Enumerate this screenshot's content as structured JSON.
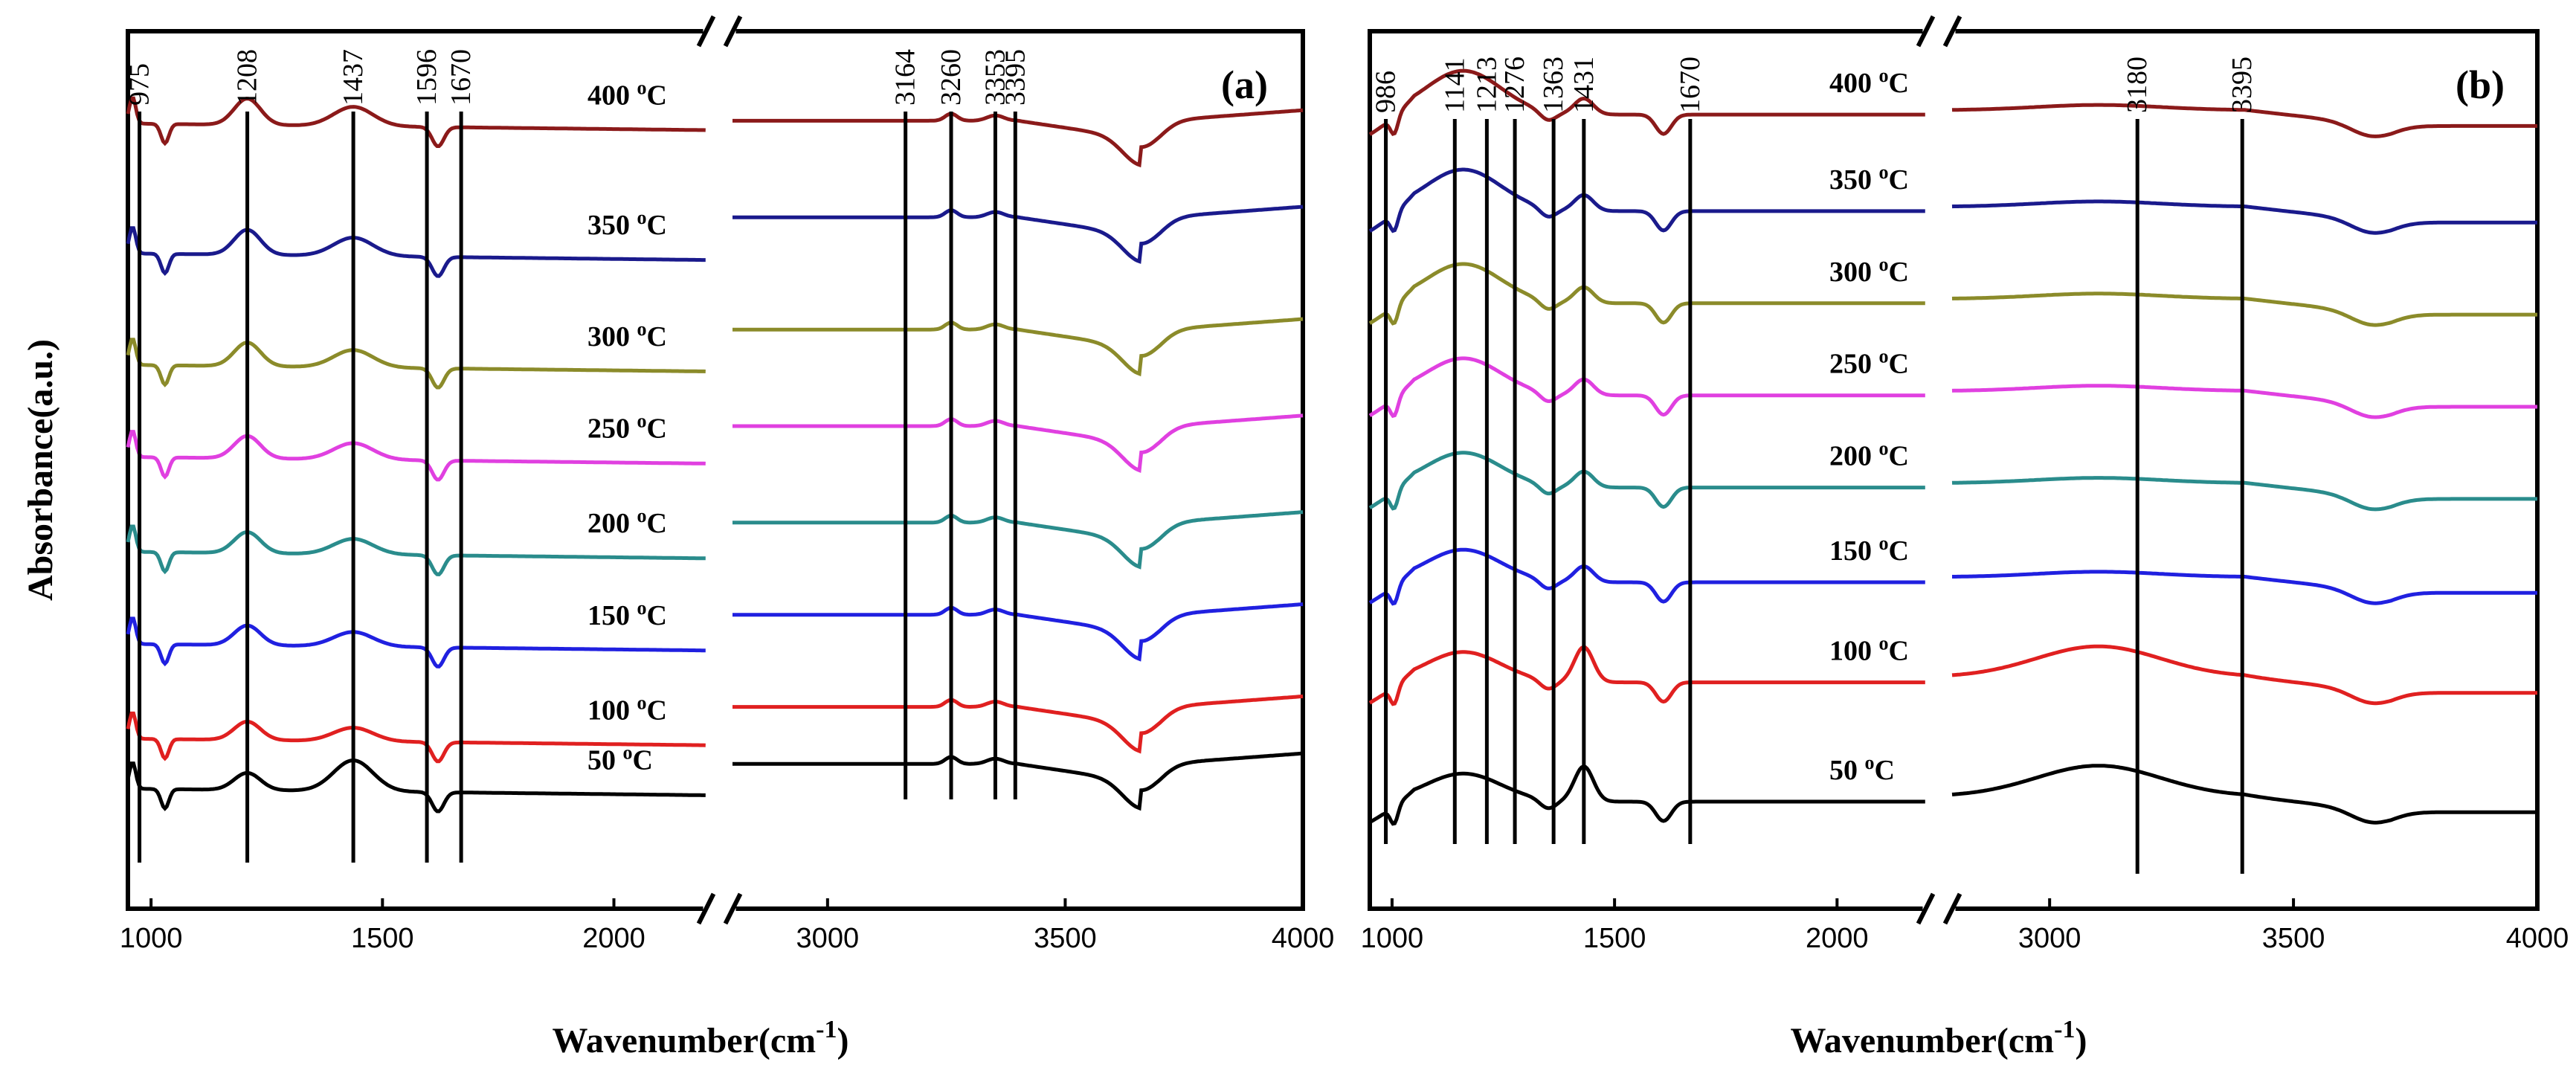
{
  "chart_data": [
    {
      "type": "line",
      "panel_label": "(a)",
      "xlabel": "Wavenumber(cm",
      "xlabel_sup": "-1",
      "xlabel_end": ")",
      "ylabel": "Absorbance(a.u.)",
      "xlim": [
        950,
        4000
      ],
      "axis_break": [
        2200,
        2800
      ],
      "x_ticks": [
        1000,
        1500,
        2000,
        3000,
        3500,
        4000
      ],
      "tick_labels": [
        "1000",
        "1500",
        "2000",
        "3000",
        "3500",
        "4000"
      ],
      "peaks": [
        975,
        1208,
        1437,
        1596,
        1670,
        3164,
        3260,
        3353,
        3395
      ],
      "peak_labels": [
        "975",
        "1208",
        "1437",
        "1596",
        "1670",
        "3164",
        "3260",
        "3353",
        "3395"
      ],
      "series": [
        {
          "name": "400 oC",
          "temp": "400",
          "color": "#8B1A1A",
          "baseline": 0.893,
          "baseline_high": 0.898,
          "label_offset": 0.0
        },
        {
          "name": "350 oC",
          "temp": "350",
          "color": "#1A1A8C",
          "baseline": 0.745,
          "baseline_high": 0.788,
          "label_offset": 0.0
        },
        {
          "name": "300 oC",
          "temp": "300",
          "color": "#8B8B2A",
          "baseline": 0.618,
          "baseline_high": 0.66,
          "label_offset": 0.0
        },
        {
          "name": "250 oC",
          "temp": "250",
          "color": "#E040E0",
          "baseline": 0.513,
          "baseline_high": 0.55,
          "label_offset": 0.0
        },
        {
          "name": "200 oC",
          "temp": "200",
          "color": "#2A8C8C",
          "baseline": 0.405,
          "baseline_high": 0.44,
          "label_offset": 0.0
        },
        {
          "name": "150 oC",
          "temp": "150",
          "color": "#2020E0",
          "baseline": 0.3,
          "baseline_high": 0.335,
          "label_offset": 0.0
        },
        {
          "name": "100 oC",
          "temp": "100",
          "color": "#E02020",
          "baseline": 0.192,
          "baseline_high": 0.23,
          "label_offset": 0.0
        },
        {
          "name": "50 oC",
          "temp": "50",
          "color": "#000000",
          "baseline": 0.135,
          "baseline_high": 0.165,
          "label_offset": 0.0
        }
      ]
    },
    {
      "type": "line",
      "panel_label": "(b)",
      "xlabel": "Wavenumber(cm",
      "xlabel_sup": "-1",
      "xlabel_end": ")",
      "xlim": [
        950,
        4000
      ],
      "axis_break": [
        2200,
        2800
      ],
      "x_ticks": [
        1000,
        1500,
        2000,
        3000,
        3500,
        4000
      ],
      "tick_labels": [
        "1000",
        "1500",
        "2000",
        "3000",
        "3500",
        "4000"
      ],
      "peaks": [
        986,
        1141,
        1213,
        1276,
        1363,
        1431,
        1670,
        3180,
        3395
      ],
      "peak_labels": [
        "986",
        "1141",
        "1213",
        "1276",
        "1363",
        "1431",
        "1670",
        "3180",
        "3395"
      ],
      "series": [
        {
          "name": "400 oC",
          "temp": "400",
          "color": "#8B1A1A",
          "baseline": 0.905,
          "baseline_high": 0.91
        },
        {
          "name": "350 oC",
          "temp": "350",
          "color": "#1A1A8C",
          "baseline": 0.795,
          "baseline_high": 0.8
        },
        {
          "name": "300 oC",
          "temp": "300",
          "color": "#8B8B2A",
          "baseline": 0.69,
          "baseline_high": 0.695
        },
        {
          "name": "250 oC",
          "temp": "250",
          "color": "#E040E0",
          "baseline": 0.585,
          "baseline_high": 0.59
        },
        {
          "name": "200 oC",
          "temp": "200",
          "color": "#2A8C8C",
          "baseline": 0.48,
          "baseline_high": 0.485
        },
        {
          "name": "150 oC",
          "temp": "150",
          "color": "#2020E0",
          "baseline": 0.372,
          "baseline_high": 0.378
        },
        {
          "name": "100 oC",
          "temp": "100",
          "color": "#E02020",
          "baseline": 0.258,
          "baseline_high": 0.264
        },
        {
          "name": "50 oC",
          "temp": "50",
          "color": "#000000",
          "baseline": 0.122,
          "baseline_high": 0.128
        }
      ]
    }
  ]
}
